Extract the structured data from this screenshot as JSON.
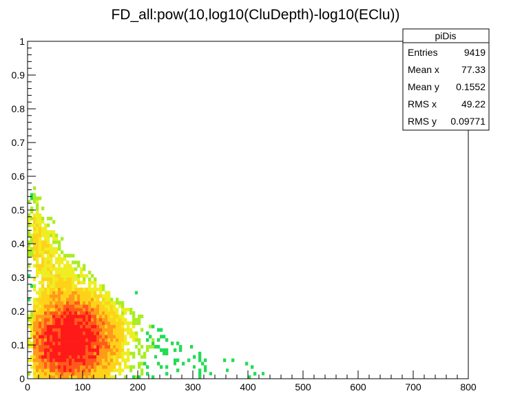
{
  "chart_data": {
    "type": "heatmap",
    "title": "FD_all:pow(10,log10(CluDepth)-log10(EClu))",
    "xlabel": "",
    "ylabel": "",
    "xlim": [
      0,
      800
    ],
    "ylim": [
      0,
      1
    ],
    "x_ticks": [
      "0",
      "100",
      "200",
      "300",
      "400",
      "500",
      "600",
      "700",
      "800"
    ],
    "y_ticks": [
      "0",
      "0.1",
      "0.2",
      "0.3",
      "0.4",
      "0.5",
      "0.6",
      "0.7",
      "0.8",
      "0.9",
      "1"
    ],
    "grid": false,
    "legend": "top-right",
    "stats_box": {
      "name": "piDis",
      "rows": [
        {
          "label": "Entries",
          "value": "9419"
        },
        {
          "label": "Mean x",
          "value": "77.33"
        },
        {
          "label": "Mean y",
          "value": "0.1552"
        },
        {
          "label": "RMS x",
          "value": "49.22"
        },
        {
          "label": "RMS y",
          "value": "0.09771"
        }
      ]
    },
    "colors": {
      "low": "#22dd55",
      "mid": "#eeee22",
      "high": "#ff2222"
    },
    "distribution": {
      "entries": 9419,
      "mean_x": 77.33,
      "mean_y": 0.1552,
      "rms_x": 49.22,
      "rms_y": 0.09771,
      "x_max_extent": 430,
      "y_max_extent": 0.65
    }
  }
}
